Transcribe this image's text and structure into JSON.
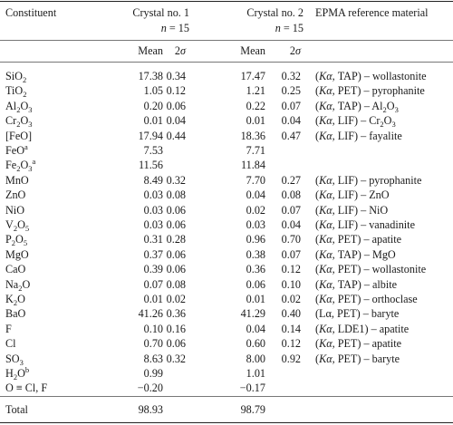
{
  "header": {
    "constituent": "Constituent",
    "crystal1": "Crystal no. 1",
    "crystal1_n": "n = 15",
    "crystal2": "Crystal no. 2",
    "crystal2_n": "n = 15",
    "reference": "EPMA reference material",
    "mean": "Mean",
    "sigma": "2σ"
  },
  "rows": [
    {
      "c": "SiO<sub>2</sub>",
      "m1": "17.38",
      "s1": "0.34",
      "m2": "17.47",
      "s2": "0.32",
      "ref": "(<i>Kα</i>, TAP) – wollastonite"
    },
    {
      "c": "TiO<sub>2</sub>",
      "m1": "1.05",
      "s1": "0.12",
      "m2": "1.21",
      "s2": "0.25",
      "ref": "(<i>Kα</i>, PET) – pyrophanite"
    },
    {
      "c": "Al<sub>2</sub>O<sub>3</sub>",
      "m1": "0.20",
      "s1": "0.06",
      "m2": "0.22",
      "s2": "0.07",
      "ref": "(<i>Kα</i>, TAP) – Al<sub>2</sub>O<sub>3</sub>"
    },
    {
      "c": "Cr<sub>2</sub>O<sub>3</sub>",
      "m1": "0.01",
      "s1": "0.04",
      "m2": "0.01",
      "s2": "0.04",
      "ref": "(<i>Kα</i>, LIF) – Cr<sub>2</sub>O<sub>3</sub>"
    },
    {
      "c": "[FeO]",
      "m1": "17.94",
      "s1": "0.44",
      "m2": "18.36",
      "s2": "0.47",
      "ref": "(<i>Kα</i>, LIF) – fayalite"
    },
    {
      "c": "FeO<sup>a</sup>",
      "m1": "7.53",
      "s1": "",
      "m2": "7.71",
      "s2": "",
      "ref": ""
    },
    {
      "c": "Fe<sub>2</sub>O<sub>3</sub><sup>a</sup>",
      "m1": "11.56",
      "s1": "",
      "m2": "11.84",
      "s2": "",
      "ref": ""
    },
    {
      "c": "MnO",
      "m1": "8.49",
      "s1": "0.32",
      "m2": "7.70",
      "s2": "0.27",
      "ref": "(<i>Kα</i>, LIF) – pyrophanite"
    },
    {
      "c": "ZnO",
      "m1": "0.03",
      "s1": "0.08",
      "m2": "0.04",
      "s2": "0.08",
      "ref": "(<i>Kα</i>, LIF) – ZnO"
    },
    {
      "c": "NiO",
      "m1": "0.03",
      "s1": "0.06",
      "m2": "0.02",
      "s2": "0.07",
      "ref": "(<i>Kα</i>, LIF) – NiO"
    },
    {
      "c": "V<sub>2</sub>O<sub>5</sub>",
      "m1": "0.03",
      "s1": "0.06",
      "m2": "0.03",
      "s2": "0.04",
      "ref": "(<i>Kα</i>, LIF) – vanadinite"
    },
    {
      "c": "P<sub>2</sub>O<sub>5</sub>",
      "m1": "0.31",
      "s1": "0.28",
      "m2": "0.96",
      "s2": "0.70",
      "ref": "(<i>Kα</i>, PET) – apatite"
    },
    {
      "c": "MgO",
      "m1": "0.37",
      "s1": "0.06",
      "m2": "0.38",
      "s2": "0.07",
      "ref": "(<i>Kα</i>, TAP) – MgO"
    },
    {
      "c": "CaO",
      "m1": "0.39",
      "s1": "0.06",
      "m2": "0.36",
      "s2": "0.12",
      "ref": "(<i>Kα</i>, PET) – wollastonite"
    },
    {
      "c": "Na<sub>2</sub>O",
      "m1": "0.07",
      "s1": "0.08",
      "m2": "0.06",
      "s2": "0.10",
      "ref": "(<i>Kα</i>, TAP) – albite"
    },
    {
      "c": "K<sub>2</sub>O",
      "m1": "0.01",
      "s1": "0.02",
      "m2": "0.01",
      "s2": "0.02",
      "ref": "(<i>Kα</i>, PET) – orthoclase"
    },
    {
      "c": "BaO",
      "m1": "41.26",
      "s1": "0.36",
      "m2": "41.29",
      "s2": "0.40",
      "ref": "(Lα, PET) – baryte"
    },
    {
      "c": "F",
      "m1": "0.10",
      "s1": "0.16",
      "m2": "0.04",
      "s2": "0.14",
      "ref": "(<i>Kα</i>, LDE1) – apatite"
    },
    {
      "c": "Cl",
      "m1": "0.70",
      "s1": "0.06",
      "m2": "0.60",
      "s2": "0.12",
      "ref": "(<i>Kα</i>, PET) – apatite"
    },
    {
      "c": "SO<sub>3</sub>",
      "m1": "8.63",
      "s1": "0.32",
      "m2": "8.00",
      "s2": "0.92",
      "ref": "(<i>Kα</i>, PET) – baryte"
    },
    {
      "c": "H<sub>2</sub>O<sup>b</sup>",
      "m1": "0.99",
      "s1": "",
      "m2": "1.01",
      "s2": "",
      "ref": ""
    },
    {
      "c": "O ≡ Cl, F",
      "m1": "−0.20",
      "s1": "",
      "m2": "−0.17",
      "s2": "",
      "ref": ""
    }
  ],
  "total": {
    "c": "Total",
    "m1": "98.93",
    "m2": "98.79"
  }
}
